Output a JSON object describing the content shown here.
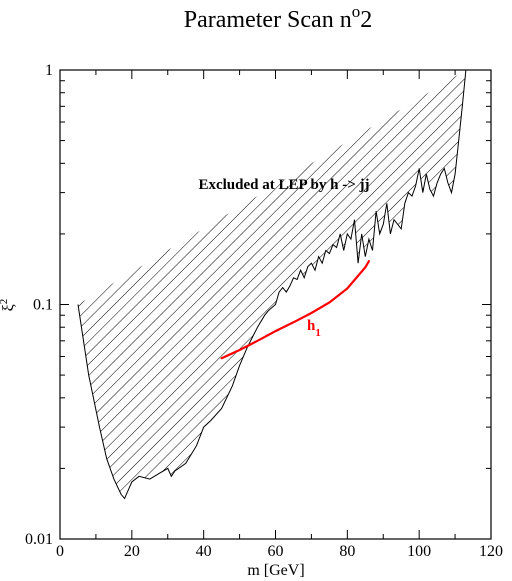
{
  "chart_data": {
    "type": "line",
    "title": "Parameter Scan n",
    "title_superscript": "o",
    "title_suffix": "2",
    "xlabel": "m [GeV]",
    "ylabel": "ξ",
    "ylabel_superscript": "2",
    "xlim": [
      0,
      120
    ],
    "ylim": [
      0.01,
      1
    ],
    "yscale": "log",
    "grid": false,
    "x_ticks": [
      0,
      20,
      40,
      60,
      80,
      100,
      120
    ],
    "x_tick_labels": [
      "0",
      "20",
      "40",
      "60",
      "80",
      "100",
      "120"
    ],
    "y_ticks": [
      0.01,
      0.1,
      1
    ],
    "y_tick_labels": [
      "0.01",
      "0.1",
      "1"
    ],
    "excluded_region": {
      "label": "Excluded at LEP by h -> jj",
      "pattern": "diagonal-hatch",
      "boundary": {
        "x": [
          5,
          8,
          11,
          13,
          15,
          17,
          18,
          20,
          22,
          25,
          28,
          30,
          31,
          32,
          35,
          38,
          40,
          42,
          45,
          48,
          50,
          52,
          55,
          57,
          58,
          60,
          61,
          62,
          63,
          64,
          65,
          66,
          67,
          68,
          69,
          70,
          71,
          72,
          73,
          74,
          75,
          76,
          77,
          78,
          79,
          80,
          81,
          82,
          83,
          84,
          85,
          86,
          87,
          88,
          89,
          90,
          91,
          92,
          93,
          94,
          95,
          96,
          97,
          98,
          99,
          100,
          101,
          102,
          103,
          104,
          105,
          106,
          107,
          108,
          109,
          110,
          111,
          112,
          113
        ],
        "y": [
          0.1,
          0.05,
          0.03,
          0.022,
          0.018,
          0.0155,
          0.0149,
          0.0175,
          0.0185,
          0.018,
          0.0192,
          0.02,
          0.0185,
          0.0195,
          0.021,
          0.025,
          0.03,
          0.032,
          0.036,
          0.045,
          0.055,
          0.065,
          0.08,
          0.09,
          0.094,
          0.1,
          0.113,
          0.118,
          0.113,
          0.12,
          0.13,
          0.128,
          0.14,
          0.13,
          0.145,
          0.15,
          0.14,
          0.16,
          0.15,
          0.17,
          0.165,
          0.18,
          0.175,
          0.2,
          0.17,
          0.2,
          0.19,
          0.23,
          0.15,
          0.2,
          0.16,
          0.19,
          0.17,
          0.25,
          0.2,
          0.22,
          0.27,
          0.2,
          0.23,
          0.22,
          0.21,
          0.27,
          0.3,
          0.29,
          0.32,
          0.38,
          0.3,
          0.36,
          0.31,
          0.29,
          0.33,
          0.36,
          0.38,
          0.33,
          0.3,
          0.36,
          0.5,
          0.7,
          1.0
        ]
      }
    },
    "series": [
      {
        "name": "h",
        "name_subscript": "1",
        "color": "#ff0000",
        "x": [
          45,
          50,
          55,
          60,
          65,
          70,
          75,
          80,
          85,
          86
        ],
        "y": [
          0.059,
          0.064,
          0.07,
          0.077,
          0.084,
          0.092,
          0.102,
          0.117,
          0.144,
          0.153
        ]
      }
    ]
  }
}
